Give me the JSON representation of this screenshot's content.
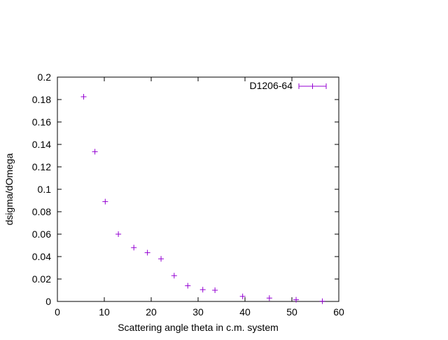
{
  "chart_data": {
    "type": "scatter",
    "xlabel": "Scattering angle theta in c.m. system",
    "ylabel": "dsigma/dOmega",
    "xlim": [
      0,
      60
    ],
    "ylim": [
      0,
      0.2
    ],
    "xticks": [
      0,
      10,
      20,
      30,
      40,
      50,
      60
    ],
    "xtick_labels": [
      "0",
      "10",
      "20",
      "30",
      "40",
      "50",
      "60"
    ],
    "yticks": [
      0,
      0.02,
      0.04,
      0.06,
      0.08,
      0.1,
      0.12,
      0.14,
      0.16,
      0.18,
      0.2
    ],
    "ytick_labels": [
      "0",
      "0.02",
      "0.04",
      "0.06",
      "0.08",
      "0.1",
      "0.12",
      "0.14",
      "0.16",
      "0.18",
      "0.2"
    ],
    "grid": false,
    "legend_position": "top-right",
    "series": [
      {
        "name": "D1206-64",
        "color": "#9400d3",
        "marker": "plus",
        "error_bars": "x",
        "x": [
          5.6,
          8.0,
          10.2,
          13.0,
          16.3,
          19.2,
          22.1,
          24.9,
          27.8,
          31.0,
          33.6,
          39.5,
          45.2,
          50.9,
          56.5
        ],
        "y": [
          0.1825,
          0.1335,
          0.089,
          0.06,
          0.048,
          0.0435,
          0.038,
          0.023,
          0.014,
          0.0105,
          0.01,
          0.0045,
          0.003,
          0.0015,
          0.0002
        ]
      }
    ]
  }
}
